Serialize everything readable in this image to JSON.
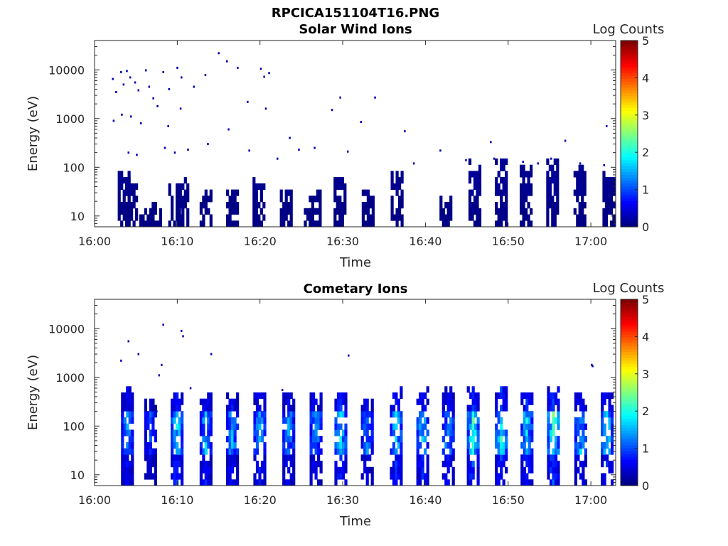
{
  "figure": {
    "title": "RPCICA151104T16.PNG"
  },
  "chart_data": [
    {
      "type": "heatmap",
      "title": "Solar Wind Ions",
      "xlabel": "Time",
      "ylabel": "Energy (eV)",
      "y_scale": "log",
      "ylim": [
        6,
        40000
      ],
      "xlim_minutes": [
        0,
        63
      ],
      "x_ticks": [
        "16:00",
        "16:10",
        "16:20",
        "16:30",
        "16:40",
        "16:50",
        "17:00"
      ],
      "y_ticks": [
        "10",
        "100",
        "1000",
        "10000"
      ],
      "colorbar": {
        "label": "Log Counts",
        "ticks": [
          "0",
          "1",
          "2",
          "3",
          "4",
          "5"
        ],
        "range": [
          0,
          5
        ],
        "colormap": "jet"
      },
      "bursts": [
        {
          "t": 3.4,
          "emax": 80,
          "lvl": 0.1
        },
        {
          "t": 4.3,
          "emax": 50,
          "lvl": 0.1
        },
        {
          "t": 6.0,
          "emax": 10,
          "lvl": 0.1
        },
        {
          "t": 7.2,
          "emax": 15,
          "lvl": 0.1
        },
        {
          "t": 9.5,
          "emax": 40,
          "lvl": 0.1
        },
        {
          "t": 10.5,
          "emax": 45,
          "lvl": 0.1
        },
        {
          "t": 13.3,
          "emax": 25,
          "lvl": 0.1
        },
        {
          "t": 16.5,
          "emax": 30,
          "lvl": 0.1
        },
        {
          "t": 19.7,
          "emax": 50,
          "lvl": 0.1
        },
        {
          "t": 23.0,
          "emax": 30,
          "lvl": 0.1
        },
        {
          "t": 25.9,
          "emax": 12,
          "lvl": 0.1
        },
        {
          "t": 26.5,
          "emax": 25,
          "lvl": 0.1
        },
        {
          "t": 29.5,
          "emax": 60,
          "lvl": 0.1
        },
        {
          "t": 32.9,
          "emax": 25,
          "lvl": 0.1
        },
        {
          "t": 36.4,
          "emax": 70,
          "lvl": 0.1
        },
        {
          "t": 42.3,
          "emax": 20,
          "lvl": 0.1
        },
        {
          "t": 45.8,
          "emax": 120,
          "lvl": 0.15
        },
        {
          "t": 49.0,
          "emax": 120,
          "lvl": 0.15
        },
        {
          "t": 52.0,
          "emax": 90,
          "lvl": 0.1
        },
        {
          "t": 55.2,
          "emax": 120,
          "lvl": 0.15
        },
        {
          "t": 58.5,
          "emax": 100,
          "lvl": 0.1
        },
        {
          "t": 62.0,
          "emax": 60,
          "lvl": 0.1
        }
      ],
      "scatter": [
        [
          2.1,
          6500
        ],
        [
          2.5,
          3500
        ],
        [
          3.1,
          9000
        ],
        [
          3.4,
          5000
        ],
        [
          3.8,
          9500
        ],
        [
          4.2,
          7000
        ],
        [
          4.8,
          5500
        ],
        [
          5.2,
          3800
        ],
        [
          6.1,
          9800
        ],
        [
          6.5,
          4500
        ],
        [
          7.0,
          2600
        ],
        [
          7.5,
          1800
        ],
        [
          8.2,
          9000
        ],
        [
          8.9,
          4000
        ],
        [
          9.9,
          11000
        ],
        [
          10.4,
          7000
        ],
        [
          11.9,
          4500
        ],
        [
          13.3,
          7800
        ],
        [
          14.9,
          22000
        ],
        [
          15.9,
          15000
        ],
        [
          17.2,
          11000
        ],
        [
          20.0,
          10500
        ],
        [
          20.4,
          7200
        ],
        [
          21.0,
          8600
        ],
        [
          2.2,
          900
        ],
        [
          3.2,
          1200
        ],
        [
          4.3,
          1100
        ],
        [
          5.5,
          800
        ],
        [
          8.8,
          700
        ],
        [
          10.3,
          1600
        ],
        [
          16.1,
          600
        ],
        [
          18.4,
          2200
        ],
        [
          20.6,
          1600
        ],
        [
          23.5,
          400
        ],
        [
          28.6,
          1500
        ],
        [
          32.1,
          850
        ],
        [
          33.8,
          2700
        ],
        [
          37.4,
          550
        ],
        [
          47.8,
          330
        ],
        [
          56.8,
          350
        ],
        [
          61.8,
          700
        ],
        [
          26.5,
          250
        ],
        [
          29.6,
          2700
        ],
        [
          13.6,
          300
        ],
        [
          8.4,
          250
        ],
        [
          9.6,
          200
        ],
        [
          22.0,
          150
        ],
        [
          18.6,
          220
        ],
        [
          4.0,
          200
        ],
        [
          5.0,
          180
        ],
        [
          11.2,
          230
        ],
        [
          24.6,
          230
        ],
        [
          30.5,
          210
        ],
        [
          41.7,
          220
        ],
        [
          38.5,
          120
        ],
        [
          44.8,
          140
        ],
        [
          48.2,
          150
        ],
        [
          49.5,
          140
        ],
        [
          51.7,
          130
        ],
        [
          53.5,
          120
        ],
        [
          55.1,
          150
        ],
        [
          58.6,
          120
        ],
        [
          61.5,
          110
        ]
      ]
    },
    {
      "type": "heatmap",
      "title": "Cometary Ions",
      "xlabel": "Time",
      "ylabel": "Energy (eV)",
      "y_scale": "log",
      "ylim": [
        6,
        40000
      ],
      "xlim_minutes": [
        0,
        63
      ],
      "x_ticks": [
        "16:00",
        "16:10",
        "16:20",
        "16:30",
        "16:40",
        "16:50",
        "17:00"
      ],
      "y_ticks": [
        "10",
        "100",
        "1000",
        "10000"
      ],
      "colorbar": {
        "label": "Log Counts",
        "ticks": [
          "0",
          "1",
          "2",
          "3",
          "4",
          "5"
        ],
        "range": [
          0,
          5
        ],
        "colormap": "jet"
      },
      "bursts": [
        {
          "t": 3.8,
          "emax": 500,
          "lvl": 1.5
        },
        {
          "t": 6.6,
          "emax": 300,
          "lvl": 1.0
        },
        {
          "t": 9.8,
          "emax": 400,
          "lvl": 1.9
        },
        {
          "t": 13.3,
          "emax": 400,
          "lvl": 1.6
        },
        {
          "t": 16.5,
          "emax": 350,
          "lvl": 1.5
        },
        {
          "t": 19.8,
          "emax": 400,
          "lvl": 1.6
        },
        {
          "t": 23.3,
          "emax": 400,
          "lvl": 1.4
        },
        {
          "t": 26.6,
          "emax": 450,
          "lvl": 1.5
        },
        {
          "t": 29.6,
          "emax": 450,
          "lvl": 1.9
        },
        {
          "t": 32.8,
          "emax": 300,
          "lvl": 1.3
        },
        {
          "t": 36.3,
          "emax": 500,
          "lvl": 1.9
        },
        {
          "t": 39.5,
          "emax": 450,
          "lvl": 1.7
        },
        {
          "t": 42.6,
          "emax": 450,
          "lvl": 1.5
        },
        {
          "t": 45.6,
          "emax": 500,
          "lvl": 2.2
        },
        {
          "t": 49.0,
          "emax": 500,
          "lvl": 2.0
        },
        {
          "t": 52.1,
          "emax": 450,
          "lvl": 1.8
        },
        {
          "t": 55.3,
          "emax": 500,
          "lvl": 2.3
        },
        {
          "t": 58.6,
          "emax": 400,
          "lvl": 1.6
        },
        {
          "t": 61.8,
          "emax": 450,
          "lvl": 1.8
        }
      ],
      "scatter": [
        [
          3.1,
          2200
        ],
        [
          4.0,
          5500
        ],
        [
          5.2,
          3000
        ],
        [
          7.7,
          1100
        ],
        [
          8.0,
          1800
        ],
        [
          8.2,
          12000
        ],
        [
          10.4,
          9000
        ],
        [
          10.6,
          7000
        ],
        [
          14.0,
          3000
        ],
        [
          30.6,
          2800
        ],
        [
          60.0,
          1800
        ],
        [
          60.1,
          1700
        ],
        [
          7.4,
          200
        ],
        [
          11.5,
          600
        ],
        [
          22.6,
          550
        ]
      ]
    }
  ]
}
